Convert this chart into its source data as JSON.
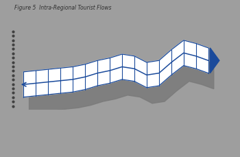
{
  "title": "Figure 5  Intra-Regional Tourist Flows",
  "background_color": "#9e9e9e",
  "band_fill": "#ffffff",
  "line_color": "#1a4a9b",
  "shadow_color": "#7a7a7a",
  "arrow_fill": "#1a4a9b",
  "bottom_bar_color": "#555555",
  "n_points": 16,
  "upper": [
    3.6,
    3.62,
    3.64,
    3.66,
    3.68,
    3.72,
    3.78,
    3.82,
    3.88,
    3.85,
    3.75,
    3.78,
    3.95,
    4.1,
    4.05,
    3.98
  ],
  "lower": [
    3.2,
    3.22,
    3.24,
    3.26,
    3.28,
    3.32,
    3.38,
    3.42,
    3.48,
    3.45,
    3.35,
    3.38,
    3.55,
    3.7,
    3.65,
    3.58
  ],
  "mid": [
    3.4,
    3.42,
    3.44,
    3.46,
    3.48,
    3.52,
    3.58,
    3.62,
    3.68,
    3.65,
    3.55,
    3.58,
    3.75,
    3.9,
    3.85,
    3.78
  ]
}
